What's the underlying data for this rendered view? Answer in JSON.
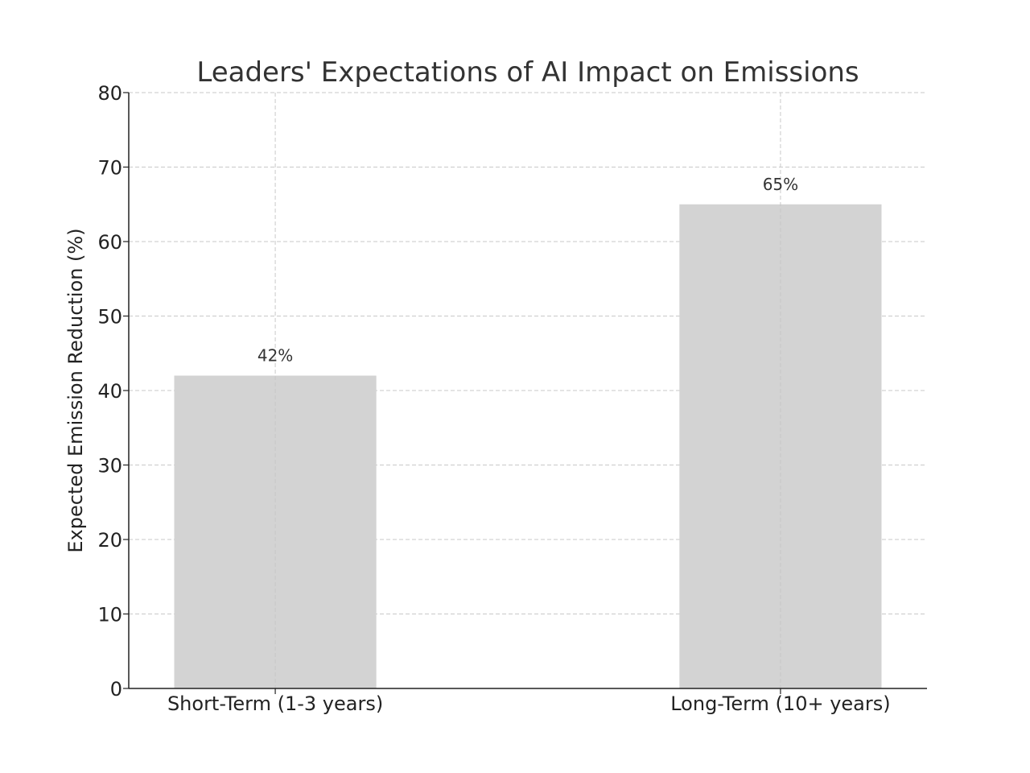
{
  "chart_data": {
    "type": "bar",
    "title": "Leaders' Expectations of AI Impact on Emissions",
    "xlabel": "",
    "ylabel": "Expected Emission Reduction (%)",
    "categories": [
      "Short-Term (1-3 years)",
      "Long-Term (10+ years)"
    ],
    "values": [
      42,
      65
    ],
    "data_labels": [
      "42%",
      "65%"
    ],
    "ylim": [
      0,
      80
    ],
    "yticks": [
      0,
      10,
      20,
      30,
      40,
      50,
      60,
      70,
      80
    ],
    "grid": true,
    "bar_color": "#d3d3d3",
    "legend": "none"
  }
}
